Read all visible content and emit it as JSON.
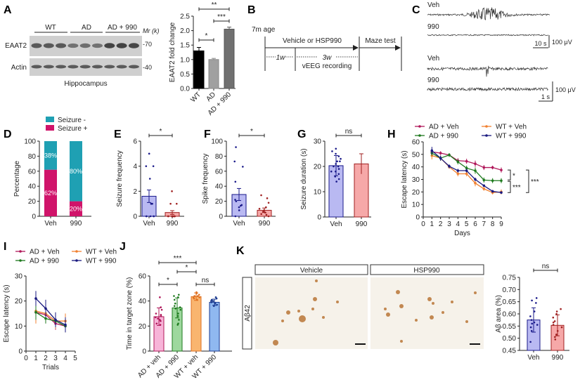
{
  "panel_labels": [
    "A",
    "B",
    "C",
    "D",
    "E",
    "F",
    "G",
    "H",
    "I",
    "J",
    "K"
  ],
  "blot": {
    "groups": [
      "WT",
      "AD",
      "AD + 990"
    ],
    "rows": [
      "EAAT2",
      "Actin"
    ],
    "mr_label": "Mr (k)",
    "markers": [
      "-70",
      "-40"
    ],
    "caption": "Hippocampus"
  },
  "timeline": {
    "start": "7m age",
    "treatment": "Vehicle or HSP990",
    "maze": "Maze test",
    "w1": "1w",
    "w3": "3w",
    "recording": "vEEG recording"
  },
  "eeg": {
    "top": {
      "veh": "Veh",
      "drug": "990",
      "time_scale": "10 s",
      "amp_scale": "100 μV"
    },
    "bottom": {
      "veh": "Veh",
      "drug": "990",
      "time_scale": "1 s",
      "amp_scale": "100 μV"
    }
  },
  "histology": {
    "headers": [
      "Vehicle",
      "HSP990"
    ],
    "stain": "Aβ42"
  },
  "chart_data": [
    {
      "panel": "A",
      "type": "bar",
      "categories": [
        "WT",
        "AD",
        "AD + 990"
      ],
      "values": [
        1.3,
        1.0,
        2.05
      ],
      "errors": [
        0.12,
        0.04,
        0.07
      ],
      "ylabel": "EAAT2 fold change",
      "ylim": [
        0,
        2.5
      ],
      "yticks": [
        0,
        0.5,
        1,
        1.5,
        2,
        2.5
      ],
      "ytick_labels": [
        "0.0",
        "0.5",
        "1.0",
        "1.5",
        "2.0",
        "2.5"
      ],
      "fills": [
        "#000000",
        "#a0a0a0",
        "#707070"
      ],
      "edges": [
        "#000000",
        "#888888",
        "#555555"
      ],
      "significance": [
        {
          "from": 0,
          "to": 1,
          "label": "*"
        },
        {
          "from": 1,
          "to": 2,
          "label": "***"
        },
        {
          "from": 0,
          "to": 2,
          "label": "**"
        }
      ]
    },
    {
      "panel": "D",
      "type": "bar",
      "stacked": true,
      "categories": [
        "Veh",
        "990"
      ],
      "series": [
        {
          "name": "Seizure +",
          "values": [
            62,
            20
          ],
          "labels": [
            "62%",
            "20%"
          ],
          "color": "#d0146a"
        },
        {
          "name": "Seizure -",
          "values": [
            38,
            80
          ],
          "labels": [
            "38%",
            "80%"
          ],
          "color": "#1fa0b3"
        }
      ],
      "ylabel": "Percentage",
      "ylim": [
        0,
        100
      ],
      "yticks": [
        0,
        20,
        40,
        60,
        80,
        100
      ],
      "ytick_labels": [
        "0",
        "20",
        "40",
        "60",
        "80",
        "100"
      ],
      "legend": "top"
    },
    {
      "panel": "E",
      "type": "bar",
      "categories": [
        "Veh",
        "990"
      ],
      "values": [
        1.6,
        0.3
      ],
      "errors": [
        0.5,
        0.15
      ],
      "ylabel": "Seizure frequency",
      "ylim": [
        0,
        6
      ],
      "yticks": [
        0,
        2,
        4,
        6
      ],
      "ytick_labels": [
        "0",
        "2",
        "4",
        "6"
      ],
      "fills": [
        "#b9b9f2",
        "#f6a8a8"
      ],
      "edges": [
        "#1a1a8a",
        "#a02020"
      ],
      "points": [
        [
          5,
          4,
          4,
          3,
          1,
          1,
          1,
          0,
          0,
          0,
          0,
          0
        ],
        [
          2,
          1,
          1,
          0,
          0,
          0,
          0,
          0,
          0,
          0,
          0
        ]
      ],
      "significance": [
        {
          "from": 0,
          "to": 1,
          "label": "*"
        }
      ]
    },
    {
      "panel": "F",
      "type": "bar",
      "categories": [
        "Veh",
        "990"
      ],
      "values": [
        29,
        8
      ],
      "errors": [
        8,
        3
      ],
      "ylabel": "Spike frequency",
      "ylim": [
        0,
        100
      ],
      "yticks": [
        0,
        20,
        40,
        60,
        80,
        100
      ],
      "ytick_labels": [
        "0",
        "20",
        "40",
        "60",
        "80",
        "100"
      ],
      "fills": [
        "#b9b9f2",
        "#f6a8a8"
      ],
      "edges": [
        "#1a1a8a",
        "#a02020"
      ],
      "points": [
        [
          92,
          73,
          66,
          46,
          22,
          20,
          15,
          14,
          12,
          8,
          0
        ],
        [
          28,
          24,
          18,
          12,
          10,
          8,
          6,
          5,
          3,
          2,
          0
        ]
      ],
      "significance": [
        {
          "from": 0,
          "to": 1,
          "label": "*"
        }
      ]
    },
    {
      "panel": "G",
      "type": "bar",
      "categories": [
        "Veh",
        "990"
      ],
      "values": [
        20.3,
        21
      ],
      "errors": [
        4,
        4
      ],
      "ylabel": "Seizure duration (s)",
      "ylim": [
        0,
        30
      ],
      "yticks": [
        0,
        10,
        20,
        30
      ],
      "ytick_labels": [
        "0",
        "10",
        "20",
        "30"
      ],
      "fills": [
        "#b9b9f2",
        "#f6a8a8"
      ],
      "edges": [
        "#1a1a8a",
        "#a02020"
      ],
      "points": [
        [
          27,
          26,
          25,
          24,
          23,
          22,
          21,
          20,
          19,
          18,
          17,
          16,
          15,
          14,
          22,
          20,
          18
        ],
        []
      ],
      "significance": [
        {
          "from": 0,
          "to": 1,
          "label": "ns"
        }
      ]
    },
    {
      "panel": "H",
      "type": "line",
      "x": [
        1,
        2,
        3,
        4,
        5,
        6,
        7,
        8,
        9
      ],
      "xlabel": "Days",
      "ylabel": "Escape latency (s)",
      "xlim": [
        0,
        9
      ],
      "ylim": [
        0,
        60
      ],
      "xticks": [
        0,
        1,
        2,
        3,
        4,
        5,
        6,
        7,
        8,
        9
      ],
      "yticks": [
        0,
        10,
        20,
        30,
        40,
        50,
        60
      ],
      "legend": "top",
      "series": [
        {
          "name": "AD + Veh",
          "color": "#b0185a",
          "values": [
            52,
            51,
            49.5,
            45,
            44.5,
            42.5,
            39.5,
            39.5,
            37.5
          ],
          "errors": [
            2,
            1.5,
            1.5,
            2,
            2,
            2.5,
            2,
            1.5,
            2
          ]
        },
        {
          "name": "WT + Veh",
          "color": "#f08030",
          "values": [
            49,
            47,
            40,
            34.5,
            34.5,
            27,
            22.5,
            19.5,
            20
          ],
          "errors": [
            3,
            2,
            1.5,
            2,
            2,
            2.5,
            1.5,
            1.5,
            2
          ]
        },
        {
          "name": "AD + 990",
          "color": "#1e7a1e",
          "values": [
            51,
            47,
            49.5,
            44,
            39,
            37,
            29.5,
            29,
            29
          ],
          "errors": [
            2,
            2,
            1.5,
            2,
            2,
            2.5,
            2,
            2,
            2
          ]
        },
        {
          "name": "WT + 990",
          "color": "#1a1a80",
          "values": [
            53,
            47,
            40.5,
            37,
            37,
            30,
            25,
            20.5,
            19.5
          ],
          "errors": [
            3,
            2,
            1.5,
            1.5,
            1.5,
            1.5,
            1,
            1,
            1
          ]
        }
      ],
      "significance": [
        {
          "between": [
            "AD + Veh",
            "AD + 990"
          ],
          "label": "*"
        },
        {
          "between": [
            "AD + 990",
            "WT"
          ],
          "label": "***"
        },
        {
          "between": [
            "AD + Veh",
            "WT"
          ],
          "label": "***"
        }
      ]
    },
    {
      "panel": "I",
      "type": "line",
      "x": [
        1,
        2,
        3,
        4
      ],
      "xlabel": "Trials",
      "ylabel": "Escape latency (s)",
      "xlim": [
        0,
        5
      ],
      "ylim": [
        0,
        30
      ],
      "xticks": [
        0,
        1,
        2,
        3,
        4,
        5
      ],
      "yticks": [
        0,
        10,
        20,
        30
      ],
      "legend": "top",
      "series": [
        {
          "name": "AD + Veh",
          "color": "#b0185a",
          "values": [
            15.5,
            14.5,
            11,
            10
          ],
          "errors": [
            3,
            2.5,
            2.5,
            2.5
          ]
        },
        {
          "name": "WT + Veh",
          "color": "#f08030",
          "values": [
            16,
            15,
            12,
            12
          ],
          "errors": [
            5,
            3,
            3,
            3
          ]
        },
        {
          "name": "AD + 990",
          "color": "#1e7a1e",
          "values": [
            15.5,
            13,
            12,
            10
          ],
          "errors": [
            3,
            2,
            2.5,
            2.5
          ]
        },
        {
          "name": "WT + 990",
          "color": "#1a1a80",
          "values": [
            21,
            17,
            12.5,
            10.5
          ],
          "errors": [
            3,
            3.5,
            3,
            3
          ]
        }
      ]
    },
    {
      "panel": "J",
      "type": "bar",
      "categories": [
        "AD + veh",
        "AD + 990",
        "WT + veh",
        "WT + 990"
      ],
      "values": [
        27.5,
        34.5,
        43.5,
        39
      ],
      "errors": [
        7,
        8,
        3,
        2.5
      ],
      "ylabel": "Time in target zone (%)",
      "ylim": [
        0,
        60
      ],
      "yticks": [
        0,
        20,
        40,
        60
      ],
      "ytick_labels": [
        "0",
        "20",
        "40",
        "60"
      ],
      "fills": [
        "#f7b4d8",
        "#9ed89e",
        "#f9b56f",
        "#8fb8f0"
      ],
      "edges": [
        "#b0185a",
        "#1e7a1e",
        "#e07020",
        "#1a3a90"
      ],
      "points": [
        [
          43,
          35,
          33,
          30,
          28,
          26,
          25,
          24,
          22,
          21,
          27,
          29
        ],
        [
          45,
          44,
          43,
          41,
          38,
          36,
          34,
          33,
          30,
          28,
          25,
          22,
          21,
          35
        ],
        [
          47,
          46,
          45,
          44,
          43,
          42,
          41,
          44,
          43
        ],
        [
          43,
          42,
          41,
          40,
          39,
          38,
          37,
          36,
          40
        ]
      ],
      "significance": [
        {
          "from": 0,
          "to": 1,
          "label": "*"
        },
        {
          "from": 1,
          "to": 2,
          "label": "*"
        },
        {
          "from": 0,
          "to": 2,
          "label": "***"
        },
        {
          "from": 2,
          "to": 3,
          "label": "ns"
        }
      ]
    },
    {
      "panel": "K",
      "type": "bar",
      "categories": [
        "Veh",
        "990"
      ],
      "values": [
        0.575,
        0.553
      ],
      "errors": [
        0.05,
        0.043
      ],
      "ylabel": "Aβ area (%)",
      "ylim": [
        0.45,
        0.75
      ],
      "yticks": [
        0.45,
        0.5,
        0.55,
        0.6,
        0.65,
        0.7,
        0.75
      ],
      "ytick_labels": [
        "0.45",
        "0.50",
        "0.55",
        "0.60",
        "0.65",
        "0.70",
        "0.75"
      ],
      "fills": [
        "#b9b9f2",
        "#f6a8a8"
      ],
      "edges": [
        "#1a1a8a",
        "#a02020"
      ],
      "points": [
        [
          0.665,
          0.655,
          0.645,
          0.61,
          0.59,
          0.575,
          0.565,
          0.56,
          0.555,
          0.545,
          0.53,
          0.485
        ],
        [
          0.62,
          0.61,
          0.6,
          0.585,
          0.57,
          0.565,
          0.555,
          0.545,
          0.53,
          0.515,
          0.505,
          0.495
        ]
      ],
      "significance": [
        {
          "from": 0,
          "to": 1,
          "label": "ns"
        }
      ]
    }
  ]
}
